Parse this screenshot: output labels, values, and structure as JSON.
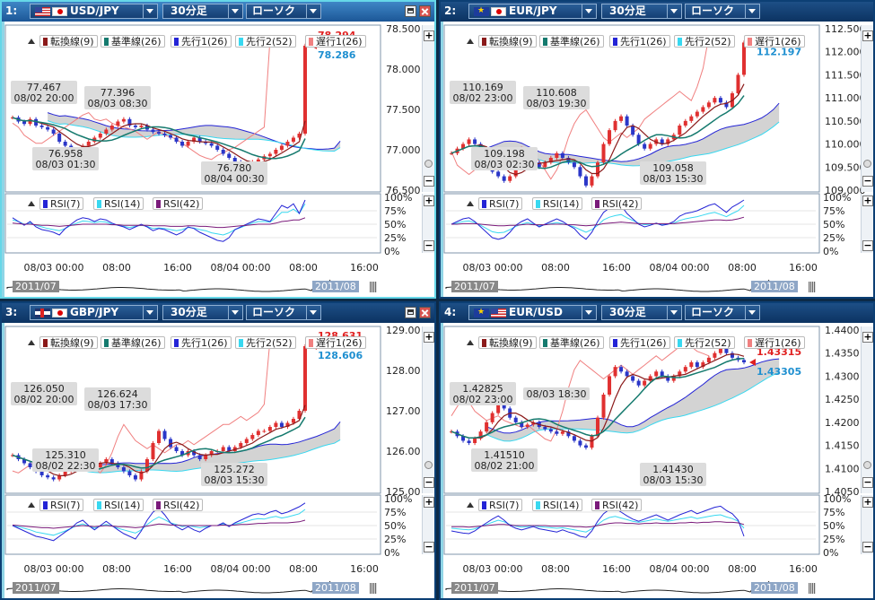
{
  "legend_labels": {
    "tenkan": "転換線(9)",
    "kijun": "基準線(26)",
    "senkou1": "先行1(26)",
    "senkou2": "先行2(52)",
    "chikou": "遅行1(26)",
    "rsi7": "RSI(7)",
    "rsi14": "RSI(14)",
    "rsi42": "RSI(42)"
  },
  "rsi_ticks": [
    "100%",
    "75%",
    "50%",
    "25%",
    "0%"
  ],
  "time_ticks": [
    "08/03 00:00",
    "08:00",
    "16:00",
    "08/04 00:00",
    "08:00",
    "16:00"
  ],
  "strip_labels": {
    "left": "2011/07",
    "right": "2011/08"
  },
  "colors": {
    "up": "#e03030",
    "down": "#2a36c8",
    "tenkan": "#8b1a1a",
    "kijun": "#157a6e",
    "senkou1": "#2424d6",
    "senkou2": "#38d8f0",
    "chikou": "#f08080",
    "cloud": "#c8c8c8",
    "rsi42": "#7a1a7a"
  },
  "chart_data": [
    {
      "type": "line",
      "id": "usdjpy",
      "panel_index": "1:",
      "pair": "USD/JPY",
      "flags": [
        "us",
        "jp"
      ],
      "timeframe": "30分足",
      "chart_type": "ローソク",
      "y_ticks": [
        "78.500",
        "78.000",
        "77.500",
        "77.000",
        "76.500"
      ],
      "ylim": [
        76.5,
        78.5
      ],
      "last_price": "78.286",
      "prev_price": "78.294",
      "annotations": [
        {
          "value": "77.467",
          "time": "08/02 20:00"
        },
        {
          "value": "77.396",
          "time": "08/03 08:30"
        },
        {
          "value": "76.958",
          "time": "08/03 01:30"
        },
        {
          "value": "76.780",
          "time": "08/04 00:30"
        }
      ],
      "price": [
        77.4,
        77.35,
        77.32,
        77.38,
        77.3,
        77.28,
        77.25,
        77.2,
        77.1,
        77.05,
        77.0,
        77.0,
        77.05,
        77.1,
        77.15,
        77.2,
        77.25,
        77.3,
        77.35,
        77.38,
        77.3,
        77.28,
        77.3,
        77.25,
        77.22,
        77.2,
        77.18,
        77.15,
        77.1,
        77.05,
        77.1,
        77.15,
        77.1,
        77.08,
        77.05,
        77.0,
        76.95,
        76.9,
        76.85,
        76.82,
        76.8,
        76.85,
        76.88,
        76.92,
        76.95,
        77.0,
        77.05,
        77.1,
        77.15,
        77.2,
        78.29
      ],
      "rsi7": [
        62,
        55,
        48,
        55,
        45,
        40,
        38,
        35,
        30,
        42,
        50,
        58,
        62,
        60,
        55,
        60,
        58,
        52,
        48,
        45,
        40,
        45,
        50,
        45,
        38,
        42,
        40,
        35,
        30,
        35,
        45,
        42,
        35,
        30,
        25,
        20,
        18,
        25,
        40,
        45,
        50,
        55,
        60,
        58,
        55,
        70,
        85,
        80,
        88,
        70,
        95
      ],
      "rsi14": [
        58,
        55,
        50,
        52,
        48,
        45,
        42,
        40,
        38,
        42,
        48,
        52,
        56,
        55,
        53,
        55,
        54,
        50,
        48,
        46,
        44,
        46,
        48,
        46,
        42,
        43,
        42,
        40,
        38,
        40,
        44,
        43,
        40,
        38,
        34,
        32,
        30,
        34,
        40,
        44,
        48,
        52,
        55,
        55,
        54,
        62,
        72,
        72,
        78,
        70,
        88
      ],
      "rsi42": [
        52,
        51,
        50,
        50,
        49,
        48,
        48,
        47,
        46,
        47,
        48,
        49,
        50,
        50,
        50,
        50,
        50,
        49,
        49,
        48,
        48,
        48,
        48,
        48,
        47,
        47,
        47,
        46,
        46,
        46,
        47,
        47,
        46,
        46,
        45,
        44,
        44,
        45,
        46,
        47,
        48,
        49,
        50,
        50,
        50,
        52,
        55,
        56,
        58,
        58,
        62
      ]
    },
    {
      "type": "line",
      "id": "eurjpy",
      "panel_index": "2:",
      "pair": "EUR/JPY",
      "flags": [
        "eu",
        "jp"
      ],
      "timeframe": "30分足",
      "chart_type": "ローソク",
      "y_ticks": [
        "112.500",
        "112.000",
        "111.500",
        "111.000",
        "110.500",
        "110.000",
        "109.500",
        "109.000"
      ],
      "ylim": [
        109.0,
        112.5
      ],
      "last_price": "112.197",
      "annotations": [
        {
          "value": "110.169",
          "time": "08/02 23:00"
        },
        {
          "value": "110.608",
          "time": "08/03 19:30"
        },
        {
          "value": "109.198",
          "time": "08/03 02:30"
        },
        {
          "value": "109.058",
          "time": "08/03 15:30"
        }
      ],
      "price": [
        109.8,
        109.9,
        110.0,
        110.1,
        110.0,
        109.9,
        109.7,
        109.4,
        109.3,
        109.2,
        109.3,
        109.5,
        109.6,
        109.7,
        109.6,
        109.5,
        109.6,
        109.7,
        109.8,
        109.7,
        109.6,
        109.5,
        109.3,
        109.1,
        109.3,
        109.6,
        110.0,
        110.3,
        110.5,
        110.6,
        110.4,
        110.2,
        110.0,
        109.9,
        110.0,
        110.1,
        110.0,
        110.1,
        110.2,
        110.4,
        110.5,
        110.6,
        110.7,
        110.8,
        110.9,
        111.0,
        110.9,
        110.8,
        111.1,
        111.5,
        112.2
      ],
      "rsi7": [
        50,
        55,
        60,
        62,
        55,
        45,
        35,
        25,
        22,
        25,
        35,
        48,
        55,
        60,
        52,
        45,
        50,
        55,
        60,
        55,
        48,
        42,
        30,
        22,
        35,
        55,
        72,
        80,
        82,
        85,
        70,
        60,
        50,
        45,
        48,
        52,
        48,
        50,
        55,
        65,
        70,
        72,
        75,
        80,
        85,
        88,
        80,
        72,
        82,
        88,
        95
      ],
      "rsi14": [
        50,
        52,
        55,
        56,
        53,
        48,
        42,
        36,
        34,
        35,
        40,
        46,
        50,
        53,
        50,
        47,
        49,
        51,
        53,
        51,
        48,
        45,
        40,
        35,
        40,
        48,
        58,
        63,
        66,
        68,
        62,
        57,
        52,
        49,
        50,
        51,
        49,
        50,
        52,
        57,
        60,
        62,
        64,
        67,
        70,
        72,
        68,
        64,
        70,
        75,
        85
      ],
      "rsi42": [
        50,
        50,
        51,
        51,
        51,
        50,
        49,
        48,
        47,
        47,
        48,
        48,
        49,
        50,
        49,
        49,
        49,
        50,
        50,
        50,
        49,
        49,
        48,
        47,
        48,
        49,
        51,
        52,
        53,
        54,
        53,
        52,
        51,
        51,
        51,
        51,
        51,
        51,
        51,
        52,
        53,
        54,
        55,
        56,
        57,
        58,
        58,
        57,
        58,
        60,
        63
      ]
    },
    {
      "type": "line",
      "id": "gbpjpy",
      "panel_index": "3:",
      "pair": "GBP/JPY",
      "flags": [
        "gb",
        "jp"
      ],
      "timeframe": "30分足",
      "chart_type": "ローソク",
      "y_ticks": [
        "129.00",
        "128.00",
        "127.00",
        "126.00",
        "125.00"
      ],
      "ylim": [
        125.0,
        129.0
      ],
      "last_price": "128.606",
      "prev_price": "128.631",
      "annotations": [
        {
          "value": "126.050",
          "time": "08/02 20:00"
        },
        {
          "value": "126.624",
          "time": "08/03 17:30"
        },
        {
          "value": "125.310",
          "time": "08/02 22:30"
        },
        {
          "value": "125.272",
          "time": "08/03 15:30"
        }
      ],
      "price": [
        125.9,
        125.8,
        125.7,
        125.6,
        125.5,
        125.4,
        125.35,
        125.3,
        125.4,
        125.5,
        125.6,
        125.7,
        125.8,
        125.7,
        125.6,
        125.7,
        125.8,
        125.7,
        125.6,
        125.5,
        125.4,
        125.3,
        125.5,
        125.8,
        126.2,
        126.5,
        126.3,
        126.1,
        126.0,
        125.9,
        126.0,
        125.9,
        125.8,
        125.9,
        126.0,
        126.0,
        126.1,
        126.0,
        126.1,
        126.2,
        126.3,
        126.4,
        126.5,
        126.5,
        126.6,
        126.7,
        126.6,
        126.7,
        126.8,
        127.0,
        128.6
      ],
      "rsi7": [
        50,
        45,
        40,
        35,
        30,
        28,
        25,
        22,
        30,
        38,
        45,
        55,
        60,
        50,
        42,
        50,
        58,
        50,
        42,
        35,
        30,
        25,
        40,
        60,
        75,
        82,
        70,
        55,
        48,
        42,
        48,
        42,
        38,
        45,
        50,
        50,
        55,
        48,
        55,
        60,
        65,
        70,
        72,
        70,
        75,
        78,
        72,
        75,
        80,
        85,
        92
      ],
      "rsi14": [
        50,
        48,
        45,
        42,
        38,
        36,
        34,
        32,
        36,
        40,
        45,
        50,
        53,
        49,
        45,
        49,
        52,
        49,
        45,
        42,
        39,
        36,
        42,
        52,
        60,
        66,
        61,
        55,
        52,
        48,
        50,
        48,
        46,
        48,
        50,
        50,
        53,
        50,
        53,
        55,
        58,
        61,
        63,
        62,
        65,
        67,
        64,
        66,
        69,
        72,
        80
      ],
      "rsi42": [
        51,
        50,
        49,
        48,
        47,
        46,
        46,
        45,
        46,
        47,
        48,
        49,
        50,
        49,
        48,
        49,
        50,
        49,
        48,
        48,
        47,
        46,
        47,
        49,
        51,
        53,
        52,
        51,
        51,
        50,
        50,
        50,
        50,
        50,
        50,
        50,
        51,
        50,
        51,
        52,
        52,
        53,
        54,
        54,
        55,
        55,
        55,
        55,
        56,
        57,
        60
      ]
    },
    {
      "type": "line",
      "id": "eurusd",
      "panel_index": "4:",
      "pair": "EUR/USD",
      "flags": [
        "eu",
        "us"
      ],
      "timeframe": "30分足",
      "chart_type": "ローソク",
      "y_ticks": [
        "1.4400",
        "1.4350",
        "1.4300",
        "1.4250",
        "1.4200",
        "1.4150",
        "1.4100",
        "1.4050"
      ],
      "ylim": [
        1.405,
        1.44
      ],
      "last_price": "1.43305",
      "prev_price": "1.43315",
      "annotations": [
        {
          "value": "1.42825",
          "time": "08/02 23:00"
        },
        {
          "value": "08/03 18:30",
          "time": ""
        },
        {
          "value": "1.41510",
          "time": "08/02 21:00"
        },
        {
          "value": "1.41430",
          "time": "08/03 15:30"
        }
      ],
      "price": [
        1.418,
        1.417,
        1.416,
        1.4155,
        1.4165,
        1.418,
        1.42,
        1.422,
        1.424,
        1.423,
        1.421,
        1.42,
        1.419,
        1.4195,
        1.42,
        1.419,
        1.4185,
        1.418,
        1.4175,
        1.418,
        1.417,
        1.416,
        1.415,
        1.4145,
        1.417,
        1.421,
        1.426,
        1.43,
        1.432,
        1.431,
        1.43,
        1.429,
        1.428,
        1.429,
        1.43,
        1.431,
        1.43,
        1.429,
        1.43,
        1.431,
        1.432,
        1.433,
        1.432,
        1.433,
        1.434,
        1.435,
        1.436,
        1.435,
        1.434,
        1.4335,
        1.433
      ],
      "rsi7": [
        40,
        38,
        36,
        35,
        40,
        48,
        55,
        62,
        68,
        60,
        50,
        45,
        42,
        45,
        48,
        44,
        42,
        40,
        38,
        42,
        38,
        35,
        30,
        28,
        40,
        58,
        72,
        80,
        82,
        75,
        68,
        62,
        58,
        62,
        66,
        70,
        65,
        60,
        65,
        70,
        74,
        78,
        72,
        76,
        80,
        84,
        86,
        78,
        72,
        60,
        30
      ],
      "rsi14": [
        45,
        44,
        43,
        42,
        44,
        48,
        52,
        56,
        60,
        57,
        52,
        49,
        47,
        48,
        50,
        48,
        47,
        46,
        45,
        46,
        44,
        42,
        40,
        38,
        44,
        52,
        60,
        65,
        67,
        64,
        61,
        58,
        56,
        58,
        60,
        62,
        60,
        58,
        60,
        62,
        64,
        66,
        63,
        65,
        67,
        69,
        70,
        66,
        63,
        58,
        45
      ],
      "rsi42": [
        48,
        48,
        48,
        47,
        48,
        49,
        50,
        51,
        52,
        52,
        51,
        50,
        50,
        50,
        50,
        50,
        50,
        49,
        49,
        49,
        49,
        48,
        48,
        47,
        48,
        50,
        52,
        54,
        55,
        55,
        54,
        54,
        53,
        54,
        54,
        55,
        54,
        54,
        54,
        55,
        55,
        56,
        55,
        56,
        56,
        57,
        57,
        56,
        56,
        55,
        52
      ]
    }
  ]
}
